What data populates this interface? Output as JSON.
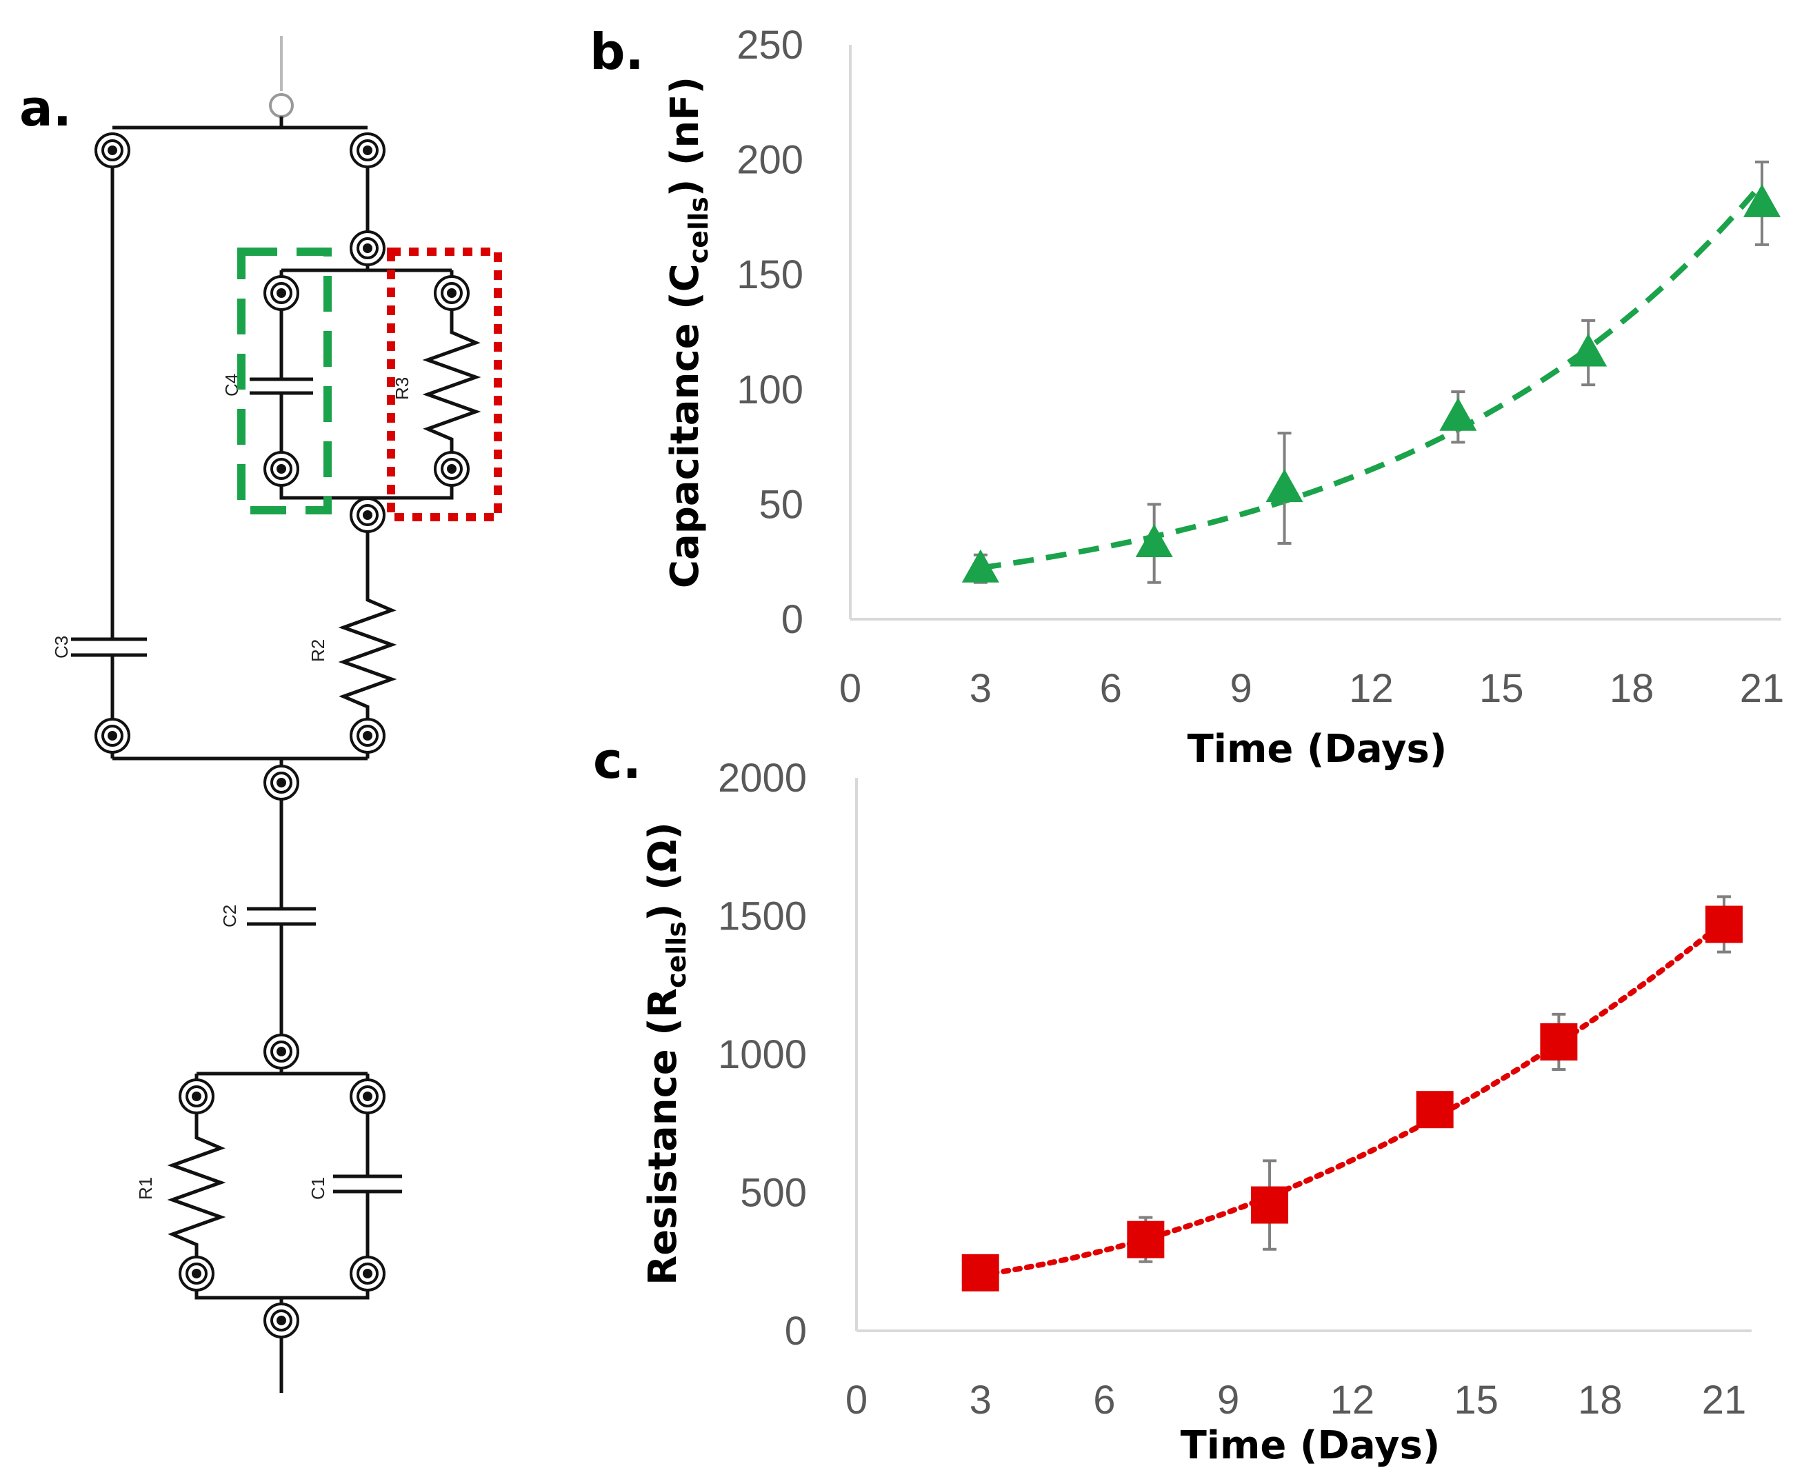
{
  "panels": {
    "a": "a.",
    "b": "b.",
    "c": "c."
  },
  "circuit": {
    "components": [
      "C3",
      "C4",
      "R3",
      "R2",
      "C2",
      "R1",
      "C1"
    ],
    "highlight_colors": {
      "C4": "#1aa34a",
      "R3": "#d90000"
    }
  },
  "chart_data": [
    {
      "panel": "b",
      "type": "scatter",
      "title": "",
      "xlabel": "Time (Days)",
      "ylabel": "Capacitance (C",
      "ylabel_sub": "cells",
      "ylabel_suffix": ") (nF)",
      "xlim": [
        0,
        21
      ],
      "ylim": [
        0,
        250
      ],
      "xticks": [
        "0",
        "3",
        "6",
        "9",
        "12",
        "15",
        "18",
        "21"
      ],
      "yticks": [
        "0",
        "50",
        "100",
        "150",
        "200",
        "250"
      ],
      "series": [
        {
          "name": "Ccells",
          "marker": "triangle",
          "color": "#1aa34a",
          "x": [
            3,
            7,
            10,
            14,
            17,
            21
          ],
          "y": [
            22,
            33,
            57,
            88,
            116,
            181
          ],
          "err": [
            6,
            17,
            24,
            11,
            14,
            18
          ],
          "trendline": "exponential",
          "line_style": "dashed"
        }
      ]
    },
    {
      "panel": "c",
      "type": "scatter",
      "title": "",
      "xlabel": "Time (Days)",
      "ylabel": "Resistance (R",
      "ylabel_sub": "cells",
      "ylabel_suffix": ") (Ω)",
      "xlim": [
        0,
        21
      ],
      "ylim": [
        0,
        2000
      ],
      "xticks": [
        "0",
        "3",
        "6",
        "9",
        "12",
        "15",
        "18",
        "21"
      ],
      "yticks": [
        "0",
        "500",
        "1000",
        "1500",
        "2000"
      ],
      "series": [
        {
          "name": "Rcells",
          "marker": "square",
          "color": "#e00000",
          "x": [
            3,
            7,
            10,
            14,
            17,
            21
          ],
          "y": [
            210,
            330,
            455,
            800,
            1045,
            1470
          ],
          "err": [
            0,
            80,
            160,
            0,
            100,
            100
          ],
          "trendline": "polynomial",
          "line_style": "dotted"
        }
      ]
    }
  ]
}
